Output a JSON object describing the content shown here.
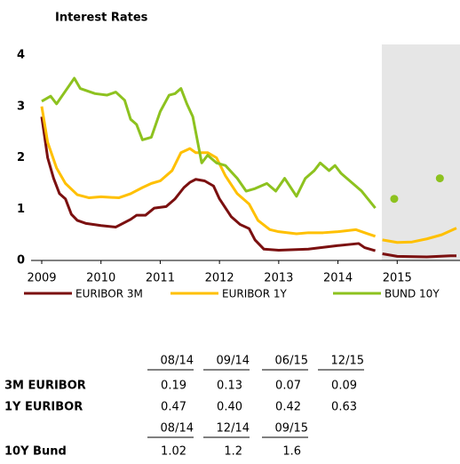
{
  "chart_data": {
    "type": "line",
    "title": "Interest Rates",
    "xlim": [
      2009,
      2016
    ],
    "ylim": [
      0,
      4
    ],
    "xticks": [
      2009,
      2010,
      2011,
      2012,
      2013,
      2014,
      2015
    ],
    "yticks": [
      0,
      1,
      2,
      3,
      4
    ],
    "grid": false,
    "shaded_region": [
      2014.74,
      2016
    ],
    "shaded_color": "#e6e6e6",
    "legend": "bottom",
    "series": [
      {
        "name": "EURIBOR 3M",
        "color": "#7b1010",
        "x": [
          2009.0,
          2009.1,
          2009.2,
          2009.3,
          2009.4,
          2009.5,
          2009.6,
          2009.75,
          2010.0,
          2010.25,
          2010.5,
          2010.6,
          2010.75,
          2010.9,
          2011.1,
          2011.25,
          2011.4,
          2011.5,
          2011.6,
          2011.75,
          2011.9,
          2012.0,
          2012.2,
          2012.35,
          2012.5,
          2012.6,
          2012.75,
          2013.0,
          2013.5,
          2014.0,
          2014.35,
          2014.45,
          2014.63,
          2014.7,
          2014.75,
          2015.0,
          2015.5,
          2015.9,
          2016.0
        ],
        "values": [
          2.8,
          2.0,
          1.6,
          1.3,
          1.2,
          0.9,
          0.78,
          0.72,
          0.68,
          0.65,
          0.8,
          0.88,
          0.88,
          1.02,
          1.05,
          1.2,
          1.42,
          1.52,
          1.58,
          1.55,
          1.45,
          1.2,
          0.85,
          0.7,
          0.62,
          0.4,
          0.22,
          0.2,
          0.22,
          0.29,
          0.33,
          0.25,
          0.19,
          null,
          0.13,
          0.08,
          0.07,
          0.09,
          0.09
        ]
      },
      {
        "name": "EURIBOR 1Y",
        "color": "#ffc000",
        "x": [
          2009.0,
          2009.1,
          2009.25,
          2009.4,
          2009.6,
          2009.8,
          2010.0,
          2010.3,
          2010.5,
          2010.7,
          2010.85,
          2011.0,
          2011.2,
          2011.35,
          2011.5,
          2011.6,
          2011.8,
          2011.95,
          2012.1,
          2012.3,
          2012.5,
          2012.65,
          2012.85,
          2013.0,
          2013.3,
          2013.5,
          2013.75,
          2014.0,
          2014.3,
          2014.5,
          2014.63,
          2014.7,
          2014.75,
          2015.0,
          2015.25,
          2015.5,
          2015.75,
          2016.0
        ],
        "values": [
          3.0,
          2.3,
          1.8,
          1.5,
          1.28,
          1.22,
          1.24,
          1.22,
          1.3,
          1.42,
          1.5,
          1.55,
          1.75,
          2.1,
          2.18,
          2.1,
          2.1,
          2.0,
          1.65,
          1.3,
          1.1,
          0.78,
          0.6,
          0.56,
          0.52,
          0.54,
          0.54,
          0.56,
          0.6,
          0.52,
          0.47,
          null,
          0.4,
          0.35,
          0.36,
          0.42,
          0.5,
          0.63
        ]
      },
      {
        "name": "BUND 10Y",
        "color": "#8dc21f",
        "x": [
          2009.0,
          2009.15,
          2009.25,
          2009.4,
          2009.55,
          2009.65,
          2009.9,
          2010.1,
          2010.25,
          2010.4,
          2010.5,
          2010.6,
          2010.7,
          2010.85,
          2011.0,
          2011.15,
          2011.25,
          2011.35,
          2011.45,
          2011.55,
          2011.7,
          2011.8,
          2011.95,
          2012.1,
          2012.3,
          2012.45,
          2012.6,
          2012.8,
          2012.95,
          2013.1,
          2013.3,
          2013.45,
          2013.6,
          2013.7,
          2013.85,
          2013.95,
          2014.05,
          2014.25,
          2014.4,
          2014.63
        ],
        "values": [
          3.1,
          3.2,
          3.05,
          3.3,
          3.55,
          3.35,
          3.25,
          3.22,
          3.28,
          3.12,
          2.75,
          2.65,
          2.35,
          2.4,
          2.9,
          3.22,
          3.25,
          3.35,
          3.05,
          2.8,
          1.9,
          2.05,
          1.9,
          1.85,
          1.6,
          1.35,
          1.4,
          1.5,
          1.35,
          1.6,
          1.25,
          1.6,
          1.75,
          1.9,
          1.75,
          1.85,
          1.7,
          1.5,
          1.35,
          1.02
        ],
        "forecast": {
          "x": [
            2014.95,
            2015.72
          ],
          "values": [
            1.2,
            1.6
          ]
        }
      }
    ]
  },
  "table": {
    "header1": [
      "08/14",
      "09/14",
      "06/15",
      "12/15"
    ],
    "rows1": [
      [
        "3M EURIBOR",
        "0.19",
        "0.13",
        "0.07",
        "0.09"
      ],
      [
        "1Y EURIBOR",
        "0.47",
        "0.40",
        "0.42",
        "0.63"
      ]
    ],
    "header2": [
      "08/14",
      "12/14",
      "09/15"
    ],
    "rows2": [
      [
        "10Y Bund",
        "1.02",
        "1.2",
        "1.6"
      ]
    ]
  }
}
